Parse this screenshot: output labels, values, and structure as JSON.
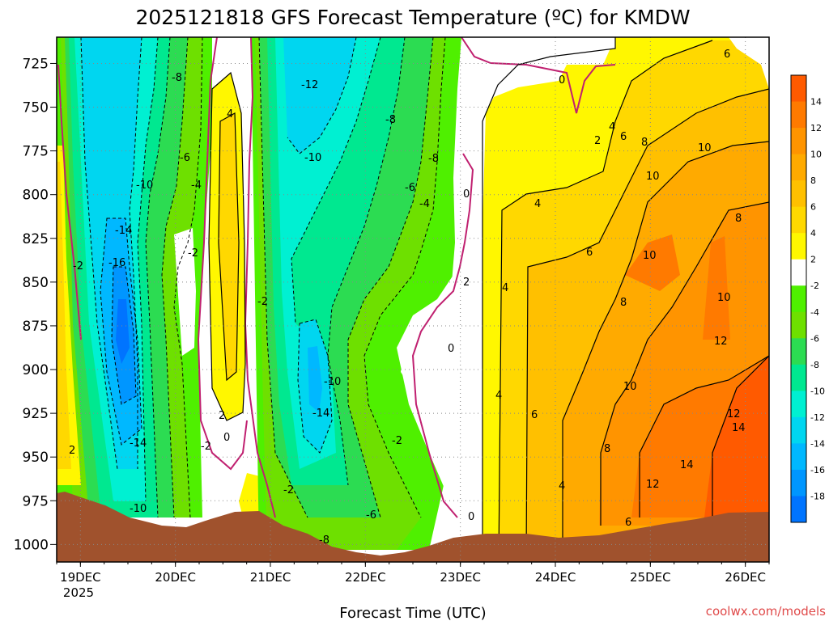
{
  "chart_data": {
    "type": "heatmap",
    "title": "2025121818 GFS Forecast Temperature (ºC) for KMDW",
    "xlabel": "Forecast Time (UTC)",
    "credit": "coolwx.com/models",
    "x_tick_labels": [
      "19DEC",
      "20DEC",
      "21DEC",
      "22DEC",
      "23DEC",
      "24DEC",
      "25DEC",
      "26DEC"
    ],
    "x_year_label": "2025",
    "y_tick_labels": [
      "725",
      "750",
      "775",
      "800",
      "825",
      "850",
      "875",
      "900",
      "925",
      "950",
      "975",
      "1000"
    ],
    "y_axis": "pressure (hPa), inverted",
    "ylim": [
      1010,
      710
    ],
    "x_range_days": [
      -0.25,
      7.25
    ],
    "grid": "dotted",
    "colorbar": {
      "labels": [
        "14",
        "12",
        "10",
        "8",
        "6",
        "4",
        "2",
        "-2",
        "-4",
        "-6",
        "-8",
        "-10",
        "-12",
        "-14",
        "-16",
        "-18"
      ],
      "bins": [
        {
          "color": "#ff5a00"
        },
        {
          "color": "#ff7a00"
        },
        {
          "color": "#ff9400"
        },
        {
          "color": "#ffaa00"
        },
        {
          "color": "#ffc000"
        },
        {
          "color": "#ffd800"
        },
        {
          "color": "#fff700"
        },
        {
          "color": "#ffffff"
        },
        {
          "color": "#4ff000"
        },
        {
          "color": "#6ee000"
        },
        {
          "color": "#2cdc52"
        },
        {
          "color": "#00e890"
        },
        {
          "color": "#00f0d2"
        },
        {
          "color": "#00d6f0"
        },
        {
          "color": "#00b8ff"
        },
        {
          "color": "#0096ff"
        },
        {
          "color": "#0074ff"
        }
      ]
    },
    "series": [
      {
        "values": [
          6,
          8,
          10,
          4,
          -6,
          -10,
          -8,
          -6,
          0,
          2,
          10,
          12,
          14,
          12
        ],
        "contour_labels": true
      },
      {
        "values": [
          -2,
          -14,
          -16,
          -4,
          -8,
          -12,
          -6,
          4,
          6,
          8,
          10,
          12
        ]
      }
    ],
    "contour_labels": [
      {
        "label": "-8"
      },
      {
        "label": "-12"
      },
      {
        "label": "-6"
      },
      {
        "label": "-10"
      },
      {
        "label": "-4"
      },
      {
        "label": "-14"
      },
      {
        "label": "-16"
      },
      {
        "label": "-2"
      },
      {
        "label": "2"
      },
      {
        "label": "0"
      },
      {
        "label": "4"
      },
      {
        "label": "6"
      },
      {
        "label": "8"
      },
      {
        "label": "10"
      },
      {
        "label": "12"
      },
      {
        "label": "14"
      }
    ],
    "terrain_color": "#a0522d",
    "freezing_line_color": "#c02070"
  }
}
